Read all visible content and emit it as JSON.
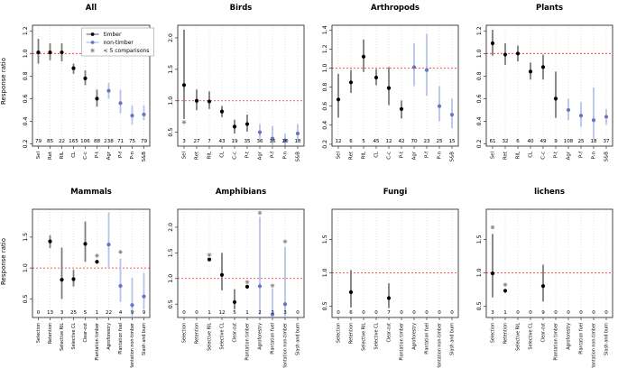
{
  "figure": {
    "ylabel": "Response ratio",
    "legend": [
      {
        "label": "timber",
        "kind": "point-line",
        "point": "#000000",
        "line": "#888888"
      },
      {
        "label": "non-timber",
        "kind": "point-line",
        "point": "#6674c4",
        "line": "#b6c2e8"
      },
      {
        "label": "< 5 comparisons",
        "kind": "star",
        "point": "#808080",
        "line": "#808080"
      }
    ],
    "colors": {
      "timber_point": "#000000",
      "timber_bar": "#7d7d7d",
      "nontimber_point": "#6674c4",
      "nontimber_bar": "#b6c2e8",
      "star": "#808080",
      "refline": "#ff2020",
      "grid": "#d8d8d8",
      "box": "#333333"
    },
    "categories_short": [
      "Sel",
      "Ret",
      "RIL",
      "CL",
      "C-c",
      "P-t",
      "Agr",
      "P-f",
      "P-n",
      "S&B"
    ],
    "categories_long": [
      "Selection",
      "Retention",
      "Selective RIL",
      "Selective CL",
      "Clear-cut",
      "Plantation timber",
      "Agroforestry",
      "Plantation fuel",
      "Plantation non-timber",
      "Slash and burn"
    ]
  },
  "chart_data": [
    {
      "type": "scatter",
      "title": "All",
      "row": 0,
      "labels": "short",
      "show_ylabel": true,
      "show_legend": true,
      "ylim": [
        0.18,
        1.25
      ],
      "yticks": [
        0.2,
        0.4,
        0.6,
        0.8,
        1.0,
        1.2
      ],
      "refline": 1.0,
      "counts": [
        79,
        85,
        22,
        165,
        106,
        88,
        238,
        71,
        75,
        79
      ],
      "points": [
        {
          "i": 0,
          "v": 1.01,
          "lo": 0.91,
          "hi": 1.13,
          "g": "timber"
        },
        {
          "i": 1,
          "v": 1.01,
          "lo": 0.94,
          "hi": 1.09,
          "g": "timber"
        },
        {
          "i": 2,
          "v": 1.01,
          "lo": 0.93,
          "hi": 1.09,
          "g": "timber"
        },
        {
          "i": 3,
          "v": 0.87,
          "lo": 0.82,
          "hi": 0.91,
          "g": "timber"
        },
        {
          "i": 4,
          "v": 0.78,
          "lo": 0.72,
          "hi": 0.85,
          "g": "timber"
        },
        {
          "i": 5,
          "v": 0.6,
          "lo": 0.53,
          "hi": 0.68,
          "g": "timber"
        },
        {
          "i": 6,
          "v": 0.67,
          "lo": 0.6,
          "hi": 0.74,
          "g": "non-timber"
        },
        {
          "i": 7,
          "v": 0.56,
          "lo": 0.47,
          "hi": 0.68,
          "g": "non-timber"
        },
        {
          "i": 8,
          "v": 0.45,
          "lo": 0.37,
          "hi": 0.54,
          "g": "non-timber"
        },
        {
          "i": 9,
          "v": 0.46,
          "lo": 0.41,
          "hi": 0.54,
          "g": "non-timber"
        }
      ]
    },
    {
      "type": "scatter",
      "title": "Birds",
      "row": 0,
      "labels": "short",
      "show_ylabel": false,
      "show_legend": false,
      "ylim": [
        0.28,
        2.2
      ],
      "yticks": [
        0.5,
        1.0,
        1.5,
        2.0
      ],
      "refline": 1.0,
      "counts": [
        3,
        27,
        7,
        43,
        19,
        35,
        36,
        16,
        20,
        18
      ],
      "points": [
        {
          "i": 0,
          "v": 1.25,
          "lo": 0.71,
          "hi": 2.13,
          "g": "timber",
          "star": 0.66
        },
        {
          "i": 1,
          "v": 1.0,
          "lo": 0.85,
          "hi": 1.18,
          "g": "timber"
        },
        {
          "i": 2,
          "v": 0.99,
          "lo": 0.87,
          "hi": 1.15,
          "g": "timber"
        },
        {
          "i": 3,
          "v": 0.83,
          "lo": 0.74,
          "hi": 0.92,
          "g": "timber"
        },
        {
          "i": 4,
          "v": 0.59,
          "lo": 0.48,
          "hi": 0.7,
          "g": "timber"
        },
        {
          "i": 5,
          "v": 0.63,
          "lo": 0.51,
          "hi": 0.78,
          "g": "timber"
        },
        {
          "i": 6,
          "v": 0.5,
          "lo": 0.4,
          "hi": 0.63,
          "g": "non-timber"
        },
        {
          "i": 7,
          "v": 0.4,
          "lo": 0.3,
          "hi": 0.6,
          "g": "non-timber"
        },
        {
          "i": 8,
          "v": 0.37,
          "lo": 0.28,
          "hi": 0.48,
          "g": "non-timber"
        },
        {
          "i": 9,
          "v": 0.48,
          "lo": 0.36,
          "hi": 0.63,
          "g": "non-timber"
        }
      ]
    },
    {
      "type": "scatter",
      "title": "Arthropods",
      "row": 0,
      "labels": "short",
      "show_ylabel": false,
      "show_legend": false,
      "ylim": [
        0.18,
        1.45
      ],
      "yticks": [
        0.2,
        0.4,
        0.6,
        0.8,
        1.0,
        1.2,
        1.4
      ],
      "refline": 1.0,
      "counts": [
        12,
        6,
        5,
        45,
        12,
        42,
        70,
        23,
        25,
        15
      ],
      "points": [
        {
          "i": 0,
          "v": 0.67,
          "lo": 0.48,
          "hi": 0.94,
          "g": "timber"
        },
        {
          "i": 1,
          "v": 0.85,
          "lo": 0.74,
          "hi": 0.98,
          "g": "timber"
        },
        {
          "i": 2,
          "v": 1.12,
          "lo": 0.96,
          "hi": 1.3,
          "g": "timber"
        },
        {
          "i": 3,
          "v": 0.9,
          "lo": 0.82,
          "hi": 0.99,
          "g": "timber"
        },
        {
          "i": 4,
          "v": 0.79,
          "lo": 0.61,
          "hi": 1.01,
          "g": "timber"
        },
        {
          "i": 5,
          "v": 0.57,
          "lo": 0.47,
          "hi": 0.66,
          "g": "timber"
        },
        {
          "i": 6,
          "v": 1.01,
          "lo": 0.81,
          "hi": 1.26,
          "g": "non-timber"
        },
        {
          "i": 7,
          "v": 0.98,
          "lo": 0.71,
          "hi": 1.36,
          "g": "non-timber"
        },
        {
          "i": 8,
          "v": 0.6,
          "lo": 0.44,
          "hi": 0.81,
          "g": "non-timber"
        },
        {
          "i": 9,
          "v": 0.51,
          "lo": 0.37,
          "hi": 0.68,
          "g": "non-timber"
        }
      ]
    },
    {
      "type": "scatter",
      "title": "Plants",
      "row": 0,
      "labels": "short",
      "show_ylabel": false,
      "show_legend": false,
      "ylim": [
        0.18,
        1.25
      ],
      "yticks": [
        0.2,
        0.4,
        0.6,
        0.8,
        1.0,
        1.2
      ],
      "refline": 1.0,
      "counts": [
        61,
        32,
        6,
        40,
        49,
        9,
        108,
        25,
        18,
        37
      ],
      "points": [
        {
          "i": 0,
          "v": 1.09,
          "lo": 0.98,
          "hi": 1.21,
          "g": "timber"
        },
        {
          "i": 1,
          "v": 0.99,
          "lo": 0.9,
          "hi": 1.09,
          "g": "timber"
        },
        {
          "i": 2,
          "v": 1.0,
          "lo": 0.93,
          "hi": 1.07,
          "g": "timber"
        },
        {
          "i": 3,
          "v": 0.84,
          "lo": 0.77,
          "hi": 0.92,
          "g": "timber"
        },
        {
          "i": 4,
          "v": 0.88,
          "lo": 0.77,
          "hi": 0.99,
          "g": "timber"
        },
        {
          "i": 5,
          "v": 0.6,
          "lo": 0.43,
          "hi": 0.84,
          "g": "timber"
        },
        {
          "i": 6,
          "v": 0.5,
          "lo": 0.41,
          "hi": 0.6,
          "g": "non-timber"
        },
        {
          "i": 7,
          "v": 0.45,
          "lo": 0.35,
          "hi": 0.57,
          "g": "non-timber"
        },
        {
          "i": 8,
          "v": 0.41,
          "lo": 0.24,
          "hi": 0.7,
          "g": "non-timber"
        },
        {
          "i": 9,
          "v": 0.44,
          "lo": 0.37,
          "hi": 0.51,
          "g": "non-timber"
        }
      ]
    },
    {
      "type": "scatter",
      "title": "Mammals",
      "row": 1,
      "labels": "long",
      "show_ylabel": true,
      "show_legend": false,
      "ylim": [
        0.2,
        1.95
      ],
      "yticks": [
        0.5,
        1.0,
        1.5
      ],
      "refline": 1.0,
      "counts": [
        0,
        13,
        3,
        25,
        5,
        1,
        22,
        4,
        9,
        9
      ],
      "points": [
        {
          "i": 1,
          "v": 1.43,
          "lo": 1.32,
          "hi": 1.53,
          "g": "timber"
        },
        {
          "i": 2,
          "v": 0.81,
          "lo": 0.5,
          "hi": 1.33,
          "g": "timber"
        },
        {
          "i": 3,
          "v": 0.82,
          "lo": 0.7,
          "hi": 0.97,
          "g": "timber"
        },
        {
          "i": 4,
          "v": 1.39,
          "lo": 1.1,
          "hi": 1.75,
          "g": "timber"
        },
        {
          "i": 5,
          "v": 1.1,
          "lo": 1.1,
          "hi": 1.1,
          "g": "timber",
          "star": 1.2
        },
        {
          "i": 6,
          "v": 1.38,
          "lo": 1.0,
          "hi": 1.9,
          "g": "non-timber"
        },
        {
          "i": 7,
          "v": 0.71,
          "lo": 0.45,
          "hi": 1.15,
          "g": "non-timber",
          "star": 1.26
        },
        {
          "i": 8,
          "v": 0.4,
          "lo": 0.22,
          "hi": 0.84,
          "g": "non-timber"
        },
        {
          "i": 9,
          "v": 0.54,
          "lo": 0.33,
          "hi": 0.92,
          "g": "non-timber"
        }
      ]
    },
    {
      "type": "scatter",
      "title": "Amphibians",
      "row": 1,
      "labels": "long",
      "show_ylabel": false,
      "show_legend": false,
      "ylim": [
        0.24,
        2.35
      ],
      "yticks": [
        0.5,
        1.0,
        1.5,
        2.0
      ],
      "refline": 1.0,
      "counts": [
        0,
        0,
        1,
        12,
        5,
        1,
        2,
        3,
        3,
        0
      ],
      "points": [
        {
          "i": 2,
          "v": 1.37,
          "lo": 1.37,
          "hi": 1.37,
          "g": "timber",
          "star": 1.46
        },
        {
          "i": 3,
          "v": 1.07,
          "lo": 0.77,
          "hi": 1.5,
          "g": "timber"
        },
        {
          "i": 4,
          "v": 0.54,
          "lo": 0.4,
          "hi": 0.79,
          "g": "timber"
        },
        {
          "i": 5,
          "v": 0.84,
          "lo": 0.84,
          "hi": 0.84,
          "g": "timber",
          "star": 0.93
        },
        {
          "i": 6,
          "v": 0.85,
          "lo": 0.3,
          "hi": 2.2,
          "g": "non-timber",
          "star": 2.28
        },
        {
          "i": 7,
          "v": 0.3,
          "lo": 0.28,
          "hi": 0.8,
          "g": "non-timber",
          "star": 0.86
        },
        {
          "i": 8,
          "v": 0.5,
          "lo": 0.26,
          "hi": 1.62,
          "g": "non-timber",
          "star": 1.72
        }
      ]
    },
    {
      "type": "scatter",
      "title": "Fungi",
      "row": 1,
      "labels": "long",
      "show_ylabel": false,
      "show_legend": false,
      "ylim": [
        0.33,
        1.95
      ],
      "yticks": [
        0.5,
        1.0,
        1.5
      ],
      "refline": 1.0,
      "counts": [
        0,
        6,
        0,
        0,
        7,
        0,
        0,
        0,
        0,
        0
      ],
      "points": [
        {
          "i": 1,
          "v": 0.71,
          "lo": 0.48,
          "hi": 1.04,
          "g": "timber"
        },
        {
          "i": 4,
          "v": 0.62,
          "lo": 0.47,
          "hi": 0.84,
          "g": "timber"
        }
      ]
    },
    {
      "type": "scatter",
      "title": "lichens",
      "row": 1,
      "labels": "long",
      "show_ylabel": false,
      "show_legend": false,
      "ylim": [
        0.33,
        1.95
      ],
      "yticks": [
        0.5,
        1.0,
        1.5
      ],
      "refline": 1.0,
      "counts": [
        3,
        1,
        0,
        0,
        9,
        0,
        0,
        0,
        0,
        0
      ],
      "points": [
        {
          "i": 0,
          "v": 0.99,
          "lo": 0.63,
          "hi": 1.58,
          "g": "timber",
          "star": 1.68
        },
        {
          "i": 1,
          "v": 0.73,
          "lo": 0.73,
          "hi": 0.73,
          "g": "timber",
          "star": 0.82
        },
        {
          "i": 4,
          "v": 0.8,
          "lo": 0.57,
          "hi": 1.12,
          "g": "timber"
        }
      ]
    }
  ]
}
